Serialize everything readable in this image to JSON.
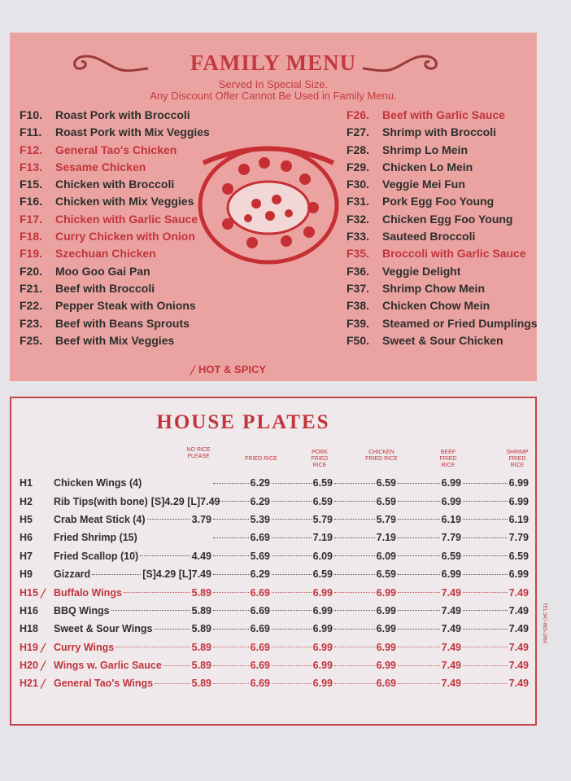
{
  "family_menu": {
    "title": "FAMILY MENU",
    "subtitle1": "Served In Special Size.",
    "subtitle2": "Any Discount Offer Cannot Be Used in Family Menu.",
    "legend": "HOT & SPICY",
    "left_items": [
      {
        "code": "F10.",
        "name": "Roast Pork with Broccoli",
        "spicy": false
      },
      {
        "code": "F11.",
        "name": "Roast Pork with Mix Veggies",
        "spicy": false
      },
      {
        "code": "F12.",
        "name": "General Tao's Chicken",
        "spicy": true
      },
      {
        "code": "F13.",
        "name": "Sesame Chicken",
        "spicy": true
      },
      {
        "code": "F15.",
        "name": "Chicken with Broccoli",
        "spicy": false
      },
      {
        "code": "F16.",
        "name": "Chicken with Mix Veggies",
        "spicy": false
      },
      {
        "code": "F17.",
        "name": "Chicken with Garlic Sauce",
        "spicy": true
      },
      {
        "code": "F18.",
        "name": "Curry Chicken with Onion",
        "spicy": true
      },
      {
        "code": "F19.",
        "name": "Szechuan Chicken",
        "spicy": true
      },
      {
        "code": "F20.",
        "name": "Moo Goo Gai Pan",
        "spicy": false
      },
      {
        "code": "F21.",
        "name": "Beef with Broccoli",
        "spicy": false
      },
      {
        "code": "F22.",
        "name": "Pepper Steak with Onions",
        "spicy": false
      },
      {
        "code": "F23.",
        "name": "Beef with Beans Sprouts",
        "spicy": false
      },
      {
        "code": "F25.",
        "name": "Beef with Mix Veggies",
        "spicy": false
      }
    ],
    "right_items": [
      {
        "code": "F26.",
        "name": "Beef with Garlic Sauce",
        "spicy": true
      },
      {
        "code": "F27.",
        "name": "Shrimp with Broccoli",
        "spicy": false
      },
      {
        "code": "F28.",
        "name": "Shrimp Lo Mein",
        "spicy": false
      },
      {
        "code": "F29.",
        "name": "Chicken Lo Mein",
        "spicy": false
      },
      {
        "code": "F30.",
        "name": "Veggie Mei Fun",
        "spicy": false
      },
      {
        "code": "F31.",
        "name": "Pork Egg Foo Young",
        "spicy": false
      },
      {
        "code": "F32.",
        "name": "Chicken Egg Foo Young",
        "spicy": false
      },
      {
        "code": "F33.",
        "name": "Sauteed Broccoli",
        "spicy": false
      },
      {
        "code": "F35.",
        "name": "Broccoli with Garlic Sauce",
        "spicy": true
      },
      {
        "code": "F36.",
        "name": "Veggie Delight",
        "spicy": false
      },
      {
        "code": "F37.",
        "name": "Shrimp Chow Mein",
        "spicy": false
      },
      {
        "code": "F38.",
        "name": "Chicken Chow Mein",
        "spicy": false
      },
      {
        "code": "F39.",
        "name": "Steamed or Fried Dumplings",
        "spicy": false
      },
      {
        "code": "F50.",
        "name": "Sweet & Sour Chicken",
        "spicy": false
      }
    ]
  },
  "house_plates": {
    "title": "HOUSE PLATES",
    "headers": [
      "NO RICE PLEASE",
      "FRIED RICE",
      "PORK FRIED RICE",
      "CHICKEN FRIED RICE",
      "BEEF FRIED RICE",
      "SHRIMP FRIED RICE"
    ],
    "rows": [
      {
        "code": "H1",
        "name": "Chicken Wings (4)",
        "spicy": false,
        "no_rice": "",
        "prices": [
          "6.29",
          "6.59",
          "6.59",
          "6.99",
          "6.99"
        ]
      },
      {
        "code": "H2",
        "name": "Rib Tips(with bone)",
        "spicy": false,
        "no_rice": "[S]4.29 [L]7.49",
        "prices": [
          "6.29",
          "6.59",
          "6.59",
          "6.99",
          "6.99"
        ]
      },
      {
        "code": "H5",
        "name": "Crab Meat Stick (4)",
        "spicy": false,
        "no_rice": "3.79",
        "prices": [
          "5.39",
          "5.79",
          "5.79",
          "6.19",
          "6.19"
        ]
      },
      {
        "code": "H6",
        "name": "Fried Shrimp (15)",
        "spicy": false,
        "no_rice": "",
        "prices": [
          "6.69",
          "7.19",
          "7.19",
          "7.79",
          "7.79"
        ]
      },
      {
        "code": "H7",
        "name": "Fried Scallop (10)",
        "spicy": false,
        "no_rice": "4.49",
        "prices": [
          "5.69",
          "6.09",
          "6.09",
          "6.59",
          "6.59"
        ]
      },
      {
        "code": "H9",
        "name": "Gizzard",
        "spicy": false,
        "no_rice": "[S]4.29 [L]7.49",
        "prices": [
          "6.29",
          "6.59",
          "6.59",
          "6.99",
          "6.99"
        ]
      },
      {
        "code": "H15",
        "name": "Buffalo Wings",
        "spicy": true,
        "no_rice": "5.89",
        "prices": [
          "6.69",
          "6.99",
          "6.99",
          "7.49",
          "7.49"
        ]
      },
      {
        "code": "H16",
        "name": "BBQ Wings",
        "spicy": false,
        "no_rice": "5.89",
        "prices": [
          "6.69",
          "6.99",
          "6.99",
          "7.49",
          "7.49"
        ]
      },
      {
        "code": "H18",
        "name": "Sweet & Sour Wings",
        "spicy": false,
        "no_rice": "5.89",
        "prices": [
          "6.69",
          "6.99",
          "6.99",
          "7.49",
          "7.49"
        ]
      },
      {
        "code": "H19",
        "name": "Curry Wings",
        "spicy": true,
        "no_rice": "5.89",
        "prices": [
          "6.69",
          "6.99",
          "6.99",
          "7.49",
          "7.49"
        ]
      },
      {
        "code": "H20",
        "name": "Wings w. Garlic Sauce",
        "spicy": true,
        "no_rice": "5.89",
        "prices": [
          "6.69",
          "6.99",
          "6.99",
          "7.49",
          "7.49"
        ]
      },
      {
        "code": "H21",
        "name": "General Tao's Wings",
        "spicy": true,
        "no_rice": "5.89",
        "prices": [
          "6.69",
          "6.99",
          "6.69",
          "7.49",
          "7.49"
        ]
      }
    ]
  },
  "side_text": "TEL:347-863-1860",
  "colors": {
    "accent_red": "#c2343b",
    "panel_pink": "#eba3a2",
    "text_dark": "#2d2f2b"
  }
}
